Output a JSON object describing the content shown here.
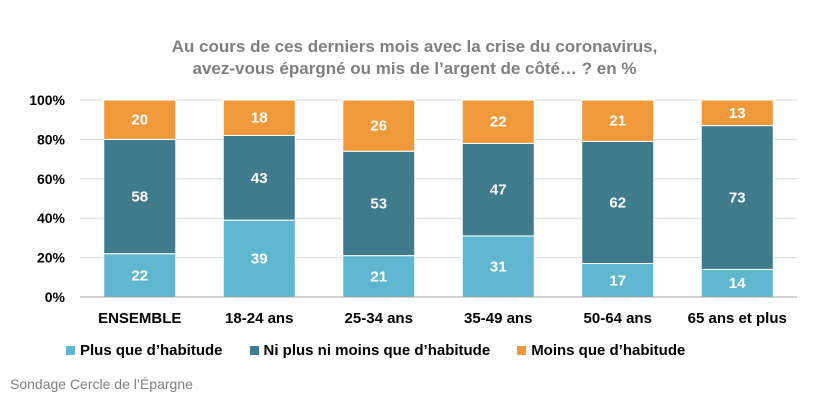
{
  "chart_data": {
    "type": "bar",
    "stacked": true,
    "title": "Au cours de ces derniers mois avec la crise du coronavirus,",
    "subtitle": "avez-vous épargné ou mis de l’argent de côté… ?  en %",
    "categories": [
      "ENSEMBLE",
      "18-24 ans",
      "25-34 ans",
      "35-49 ans",
      "50-64 ans",
      "65 ans et plus"
    ],
    "series": [
      {
        "name": "Plus que d’habitude",
        "color": "#5fb7cf",
        "label_color": "#ffffff",
        "values": [
          22,
          39,
          21,
          31,
          17,
          14
        ]
      },
      {
        "name": "Ni plus ni moins que d’habitude",
        "color": "#3f7b8d",
        "label_color": "#ffffff",
        "values": [
          58,
          43,
          53,
          47,
          62,
          73
        ]
      },
      {
        "name": "Moins que d’habitude",
        "color": "#f0993b",
        "label_color": "#ffffff",
        "values": [
          20,
          18,
          26,
          22,
          21,
          13
        ]
      }
    ],
    "ylim": [
      0,
      100
    ],
    "yticks": [
      "0%",
      "20%",
      "40%",
      "60%",
      "80%",
      "100%"
    ],
    "grid": true,
    "legend_position": "bottom"
  },
  "source": "Sondage Cercle de l’Épargne"
}
